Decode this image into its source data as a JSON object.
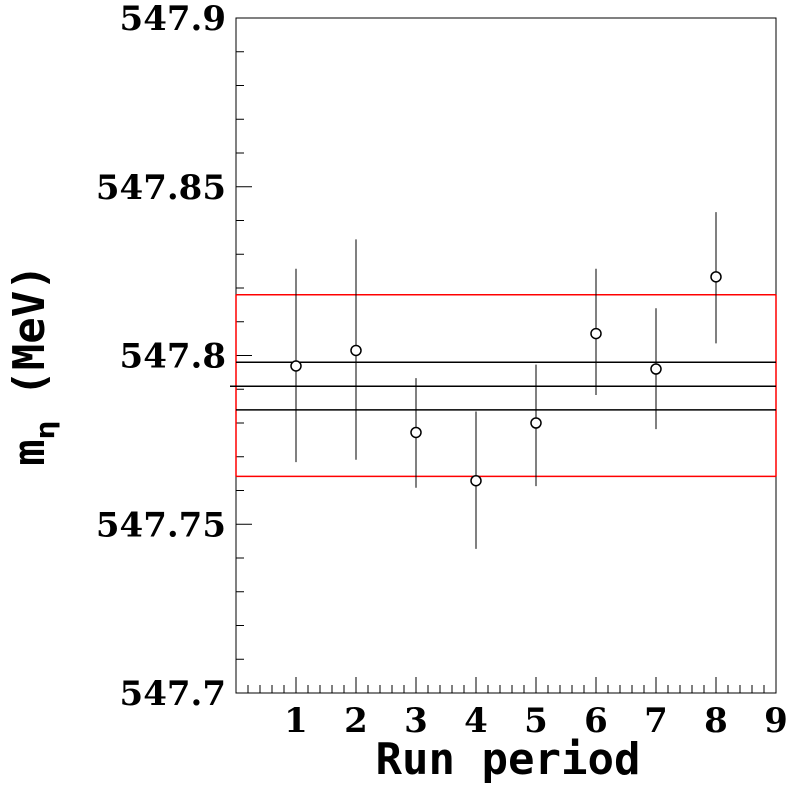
{
  "chart_data": {
    "type": "scatter",
    "xlabel": "Run period",
    "ylabel_main": "m",
    "ylabel_sub": "η",
    "ylabel_unit": "(MeV)",
    "xlim": [
      0,
      9
    ],
    "ylim": [
      547.7,
      547.9
    ],
    "x_ticks": [
      "1",
      "2",
      "3",
      "4",
      "5",
      "6",
      "7",
      "8",
      "9"
    ],
    "y_ticks": [
      "547.7",
      "547.75",
      "547.8",
      "547.85",
      "547.9"
    ],
    "grid": false,
    "legend": "none",
    "points": [
      {
        "x": 1,
        "y": 547.7969,
        "err_low": 547.7684,
        "err_high": 547.8257
      },
      {
        "x": 2,
        "y": 547.8015,
        "err_low": 547.7691,
        "err_high": 547.8344
      },
      {
        "x": 3,
        "y": 547.7772,
        "err_low": 547.7608,
        "err_high": 547.7933
      },
      {
        "x": 4,
        "y": 547.7629,
        "err_low": 547.7427,
        "err_high": 547.7834
      },
      {
        "x": 5,
        "y": 547.78,
        "err_low": 547.7613,
        "err_high": 547.7973
      },
      {
        "x": 6,
        "y": 547.8065,
        "err_low": 547.7883,
        "err_high": 547.8257
      },
      {
        "x": 7,
        "y": 547.796,
        "err_low": 547.7782,
        "err_high": 547.814
      },
      {
        "x": 8,
        "y": 547.8233,
        "err_low": 547.8036,
        "err_high": 547.8425
      }
    ],
    "mean_line": 547.7909,
    "mean_band": [
      547.7839,
      547.798
    ],
    "outer_band": [
      547.7642,
      547.818
    ],
    "colors": {
      "points": "#000000",
      "mean_band": "#000000",
      "outer_band": "#ff0000"
    }
  }
}
